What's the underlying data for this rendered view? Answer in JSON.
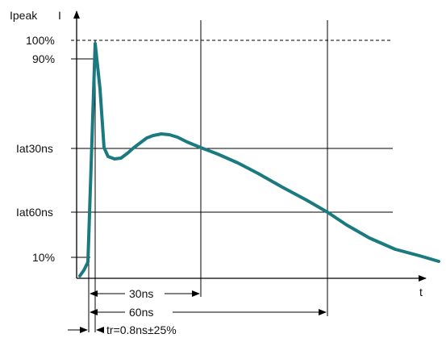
{
  "axis": {
    "y_label": "Ipeak",
    "y_symbol": "I",
    "x_label": "t"
  },
  "levels": {
    "l100": "100%",
    "l90": "90%",
    "lat30": "Iat30ns",
    "a60": "Iat60ns",
    "l10": "10%"
  },
  "dimensions": {
    "d30": "30ns",
    "d60": "60ns",
    "tr": "tr=0.8ns±25%"
  },
  "colors": {
    "waveform": "#1a7a7f",
    "lines": "#000000"
  }
}
